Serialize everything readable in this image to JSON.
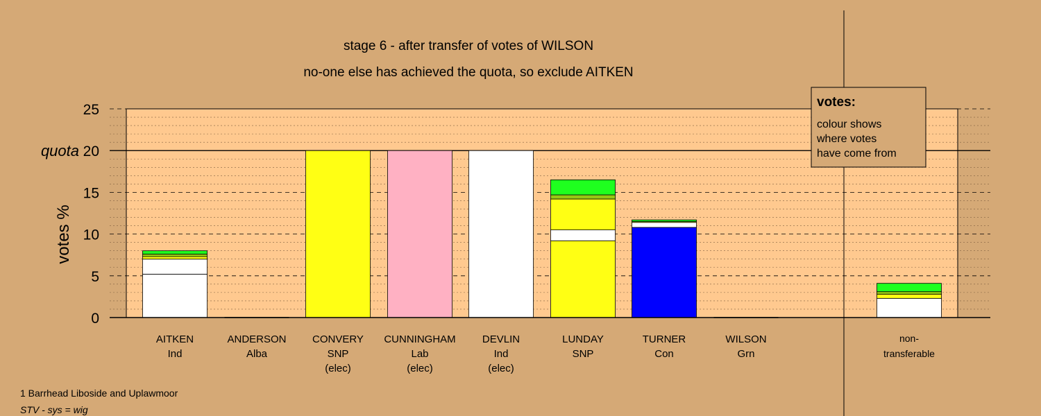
{
  "title": "stage 6 - after transfer of votes of WILSON",
  "subtitle": "no-one else has achieved the quota, so exclude AITKEN",
  "ylabel": "votes %",
  "quota_label": "quota",
  "legend": {
    "title": "votes:",
    "lines": [
      "colour shows",
      "where votes",
      "have come from"
    ]
  },
  "footer": {
    "ward": "1 Barrhead Liboside and Uplawmoor",
    "system": "STV - sys = wig"
  },
  "colors": {
    "background": "#d5a976",
    "plot_area": "#ffc98f",
    "Ind": "#ffffff",
    "SNP": "#ffff14",
    "Lab": "#ffb1c3",
    "Con": "#0000ff",
    "Grn": "#1fff1f",
    "Alba": "#b3b300",
    "mixed": "#96c814"
  },
  "chart_data": {
    "type": "bar",
    "stacked": true,
    "ylim": [
      0,
      25
    ],
    "yticks": [
      0,
      5,
      10,
      15,
      20,
      25
    ],
    "quota": 20,
    "grid": true,
    "legend_position": "top-right",
    "candidates": [
      {
        "name": "AITKEN",
        "party": "Ind",
        "note": "",
        "segments": [
          {
            "from": "Ind",
            "value": 5.2
          },
          {
            "from": "Ind",
            "value": 1.8
          },
          {
            "from": "SNP",
            "value": 0.3
          },
          {
            "from": "mixed",
            "value": 0.3
          },
          {
            "from": "Grn",
            "value": 0.4
          }
        ]
      },
      {
        "name": "ANDERSON",
        "party": "Alba",
        "note": "",
        "segments": []
      },
      {
        "name": "CONVERY",
        "party": "SNP",
        "note": "(elec)",
        "segments": [
          {
            "from": "SNP",
            "value": 20
          }
        ]
      },
      {
        "name": "CUNNINGHAM",
        "party": "Lab",
        "note": "(elec)",
        "segments": [
          {
            "from": "Lab",
            "value": 20
          }
        ]
      },
      {
        "name": "DEVLIN",
        "party": "Ind",
        "note": "(elec)",
        "segments": [
          {
            "from": "Ind",
            "value": 20
          }
        ]
      },
      {
        "name": "LUNDAY",
        "party": "SNP",
        "note": "",
        "segments": [
          {
            "from": "SNP",
            "value": 9.2
          },
          {
            "from": "Ind",
            "value": 1.3
          },
          {
            "from": "SNP",
            "value": 3.7
          },
          {
            "from": "mixed",
            "value": 0.5
          },
          {
            "from": "Grn",
            "value": 1.8
          }
        ]
      },
      {
        "name": "TURNER",
        "party": "Con",
        "note": "",
        "segments": [
          {
            "from": "Con",
            "value": 10.8
          },
          {
            "from": "Ind",
            "value": 0.6
          },
          {
            "from": "SNP",
            "value": 0.1
          },
          {
            "from": "Grn",
            "value": 0.2
          }
        ]
      },
      {
        "name": "WILSON",
        "party": "Grn",
        "note": "",
        "segments": []
      }
    ],
    "non_transferable": {
      "label_line1": "non-",
      "label_line2": "transferable",
      "segments": [
        {
          "from": "Ind",
          "value": 2.3
        },
        {
          "from": "SNP",
          "value": 0.5
        },
        {
          "from": "mixed",
          "value": 0.3
        },
        {
          "from": "Grn",
          "value": 1.0
        }
      ]
    }
  }
}
